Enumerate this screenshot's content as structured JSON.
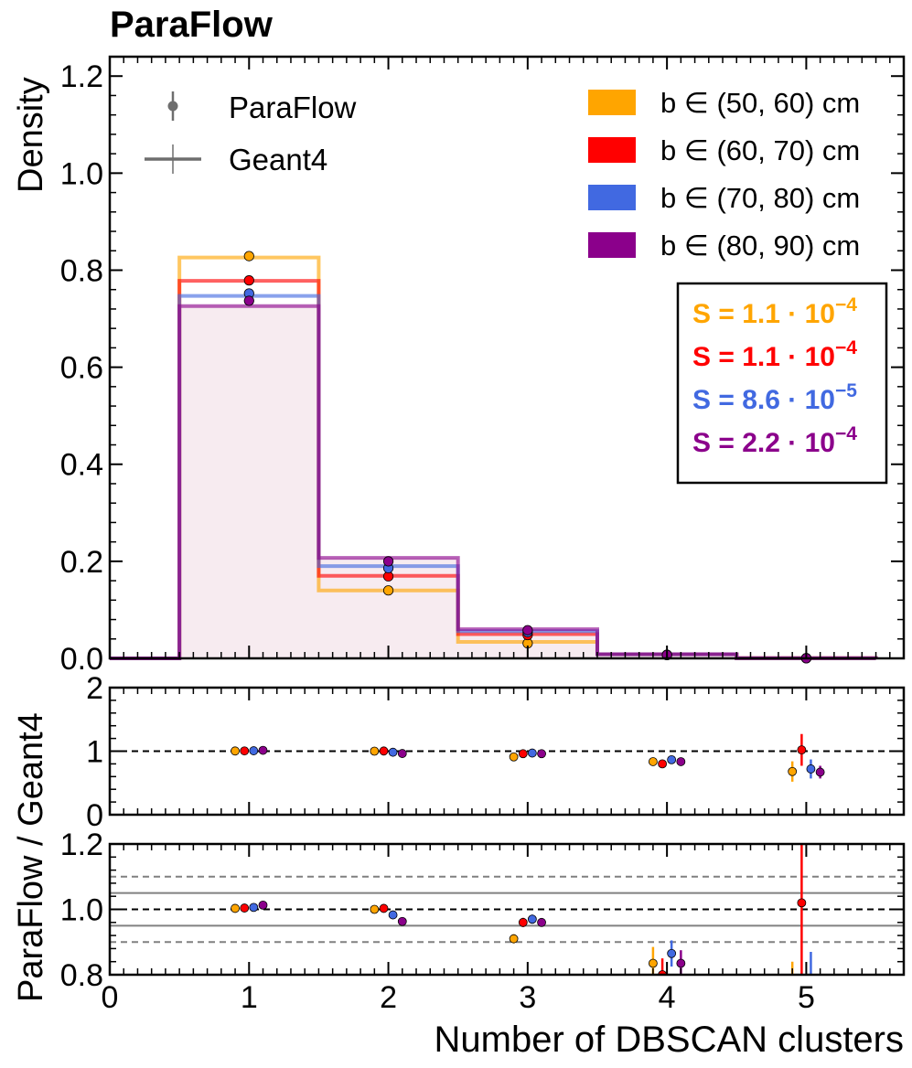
{
  "figure_title": "ParaFlow",
  "colors": {
    "b50_60": "#ffa500",
    "b60_70": "#ff0000",
    "b70_80": "#4169e1",
    "b80_90": "#8b008b",
    "marker_gray": "#6e6e6e",
    "fill_pink": "#f7ebf0",
    "band_gray": "#808080"
  },
  "legend": {
    "paraflow_label": "ParaFlow",
    "geant4_label": "Geant4",
    "ranges": [
      {
        "label": "b ∈ (50, 60) cm",
        "color": "#ffa500"
      },
      {
        "label": "b ∈ (60, 70) cm",
        "color": "#ff0000"
      },
      {
        "label": "b ∈ (70, 80) cm",
        "color": "#4169e1"
      },
      {
        "label": "b ∈ (80, 90) cm",
        "color": "#8b008b"
      }
    ]
  },
  "score_box": [
    {
      "prefix": "S = ",
      "mantissa": "1.1",
      "dot": " · ",
      "base": "10",
      "exponent": "−4",
      "color": "#ffa500"
    },
    {
      "prefix": "S = ",
      "mantissa": "1.1",
      "dot": " · ",
      "base": "10",
      "exponent": "−4",
      "color": "#ff0000"
    },
    {
      "prefix": "S = ",
      "mantissa": "8.6",
      "dot": " · ",
      "base": "10",
      "exponent": "−5",
      "color": "#4169e1"
    },
    {
      "prefix": "S = ",
      "mantissa": "2.2",
      "dot": " · ",
      "base": "10",
      "exponent": "−4",
      "color": "#8b008b"
    }
  ],
  "chart_data": {
    "type": "histogram-with-ratio",
    "xlabel": "Number of DBSCAN clusters",
    "xlim": [
      0,
      5.7
    ],
    "x_ticks": [
      "0",
      "1",
      "2",
      "3",
      "4",
      "5"
    ],
    "bins": [
      0.5,
      1.5,
      2.5,
      3.5,
      4.5,
      5.5
    ],
    "categories": [
      1,
      2,
      3,
      4,
      5
    ],
    "main": {
      "ylabel": "Density",
      "ylim": [
        0,
        1.24
      ],
      "y_ticks": [
        "0.0",
        "0.2",
        "0.4",
        "0.6",
        "0.8",
        "1.0",
        "1.2"
      ],
      "series": [
        {
          "name": "b ∈ (50, 60) cm",
          "color": "#ffa500",
          "geant4": [
            0.826,
            0.14,
            0.034,
            0.0085,
            0.0004
          ],
          "paraflow": [
            0.829,
            0.14,
            0.031,
            0.0071,
            0.0003
          ]
        },
        {
          "name": "b ∈ (60, 70) cm",
          "color": "#ff0000",
          "geant4": [
            0.778,
            0.17,
            0.05,
            0.0085,
            0.0003
          ],
          "paraflow": [
            0.779,
            0.169,
            0.048,
            0.0068,
            0.0003
          ]
        },
        {
          "name": "b ∈ (70, 80) cm",
          "color": "#4169e1",
          "geant4": [
            0.747,
            0.19,
            0.056,
            0.0085,
            0.0003
          ],
          "paraflow": [
            0.752,
            0.186,
            0.054,
            0.0073,
            0.0002
          ]
        },
        {
          "name": "b ∈ (80, 90) cm",
          "color": "#8b008b",
          "geant4": [
            0.726,
            0.207,
            0.06,
            0.0085,
            0.0004
          ],
          "paraflow": [
            0.737,
            0.2,
            0.058,
            0.0071,
            0.0003
          ]
        }
      ]
    },
    "ratio_ylabel": "ParaFlow / Geant4",
    "ratio_full": {
      "ylim": [
        0,
        2
      ],
      "y_ticks": [
        "0",
        "1",
        "2"
      ],
      "reference_line": 1
    },
    "ratio_zoom": {
      "ylim": [
        0.8,
        1.2
      ],
      "y_ticks": [
        "0.8",
        "1.0",
        "1.2"
      ],
      "reference_line": 1.0,
      "solid_bands": [
        0.95,
        1.05
      ],
      "dashed_bands": [
        0.9,
        1.1
      ]
    },
    "ratios": [
      {
        "name": "b ∈ (50, 60) cm",
        "color": "#ffa500",
        "values": [
          1.003,
          1.0,
          0.91,
          0.835,
          0.68
        ],
        "errors": [
          0.004,
          0.006,
          0.014,
          0.05,
          0.16
        ]
      },
      {
        "name": "b ∈ (60, 70) cm",
        "color": "#ff0000",
        "values": [
          1.004,
          1.003,
          0.96,
          0.8,
          1.02
        ],
        "errors": [
          0.004,
          0.006,
          0.014,
          0.05,
          0.25
        ]
      },
      {
        "name": "b ∈ (70, 80) cm",
        "color": "#4169e1",
        "values": [
          1.006,
          0.983,
          0.97,
          0.865,
          0.72
        ],
        "errors": [
          0.004,
          0.006,
          0.014,
          0.04,
          0.15
        ]
      },
      {
        "name": "b ∈ (80, 90) cm",
        "color": "#8b008b",
        "values": [
          1.013,
          0.963,
          0.96,
          0.835,
          0.67
        ],
        "errors": [
          0.004,
          0.006,
          0.012,
          0.04,
          0.1
        ]
      }
    ]
  }
}
